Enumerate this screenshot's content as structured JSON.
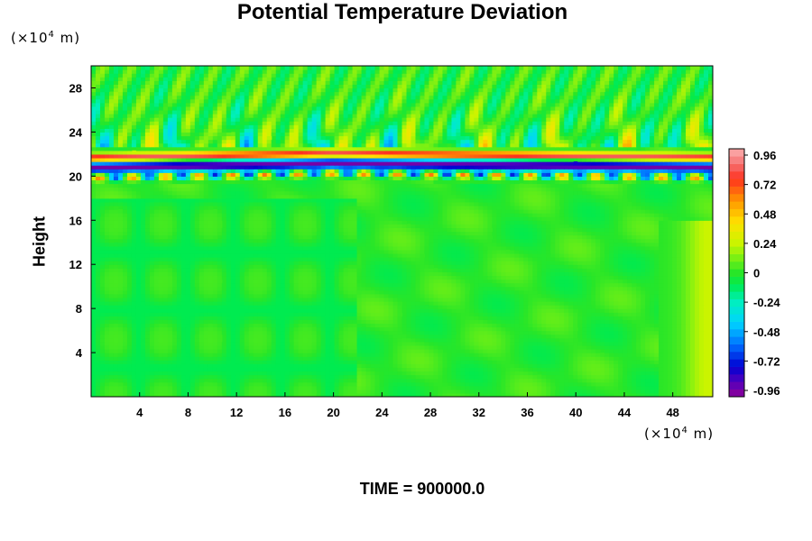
{
  "chart_data": {
    "type": "heatmap",
    "title": "Potential Temperature Deviation",
    "xlabel": "",
    "ylabel": "Height",
    "x_unit": "(×10⁴ m)",
    "y_unit": "(×10⁴ m)",
    "xlim": [
      0,
      51.3
    ],
    "ylim": [
      0,
      30
    ],
    "x_ticks": [
      "4",
      "8",
      "12",
      "16",
      "20",
      "24",
      "28",
      "32",
      "36",
      "40",
      "44",
      "48"
    ],
    "y_ticks": [
      "4",
      "8",
      "12",
      "16",
      "20",
      "24",
      "28"
    ],
    "colorbar": {
      "ticks": [
        "0.96",
        "0.72",
        "0.48",
        "0.24",
        "0",
        "-0.24",
        "-0.48",
        "-0.72",
        "-0.96"
      ],
      "range": [
        -0.96,
        0.96
      ],
      "interval": 0.06
    },
    "field_structure": {
      "background_value": 0.0,
      "perturbation_layer_height": [
        20,
        22.5
      ],
      "perturbation_layer_value": [
        -0.96,
        0.96
      ],
      "upper_wave_region_height": [
        22.5,
        30
      ],
      "upper_wave_amplitude": 0.5
    },
    "annotation": "TIME = 900000.0"
  }
}
